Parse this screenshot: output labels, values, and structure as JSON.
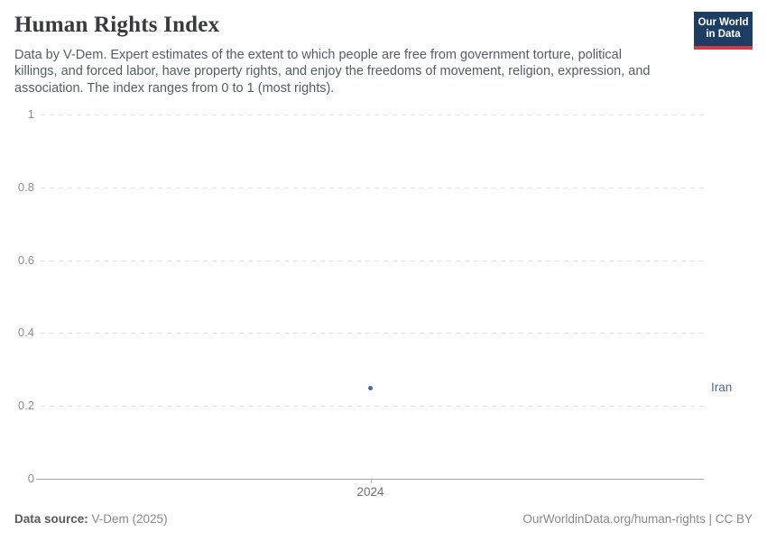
{
  "header": {
    "title": "Human Rights Index",
    "subtitle": "Data by V-Dem. Expert estimates of the extent to which people are free from government torture, political killings, and forced labor, have property rights, and enjoy the freedoms of movement, religion, expression, and association. The index ranges from 0 to 1 (most rights).",
    "logo": {
      "line1": "Our World",
      "line2": "in Data",
      "bg_color": "#1d3d63",
      "accent_color": "#d43b44"
    }
  },
  "chart_data": {
    "type": "scatter",
    "title": "Human Rights Index",
    "xlabel": "",
    "ylabel": "",
    "ylim": [
      0,
      1
    ],
    "grid": "horizontal-dashed",
    "x_ticks": [
      {
        "label": "2024",
        "value": 2024
      }
    ],
    "y_ticks": [
      {
        "label": "1",
        "value": 1.0
      },
      {
        "label": "0.8",
        "value": 0.8
      },
      {
        "label": "0.6",
        "value": 0.6
      },
      {
        "label": "0.4",
        "value": 0.4
      },
      {
        "label": "0.2",
        "value": 0.2
      },
      {
        "label": "0",
        "value": 0.0
      }
    ],
    "series": [
      {
        "name": "Iran",
        "color": "#4c6a9c",
        "points": [
          {
            "x": 2024,
            "y": 0.25
          }
        ]
      }
    ],
    "legend_position": "right-entity-label"
  },
  "footer": {
    "source_label": "Data source:",
    "source_value": " V-Dem (2025)",
    "credit": "OurWorldinData.org/human-rights | CC BY"
  }
}
